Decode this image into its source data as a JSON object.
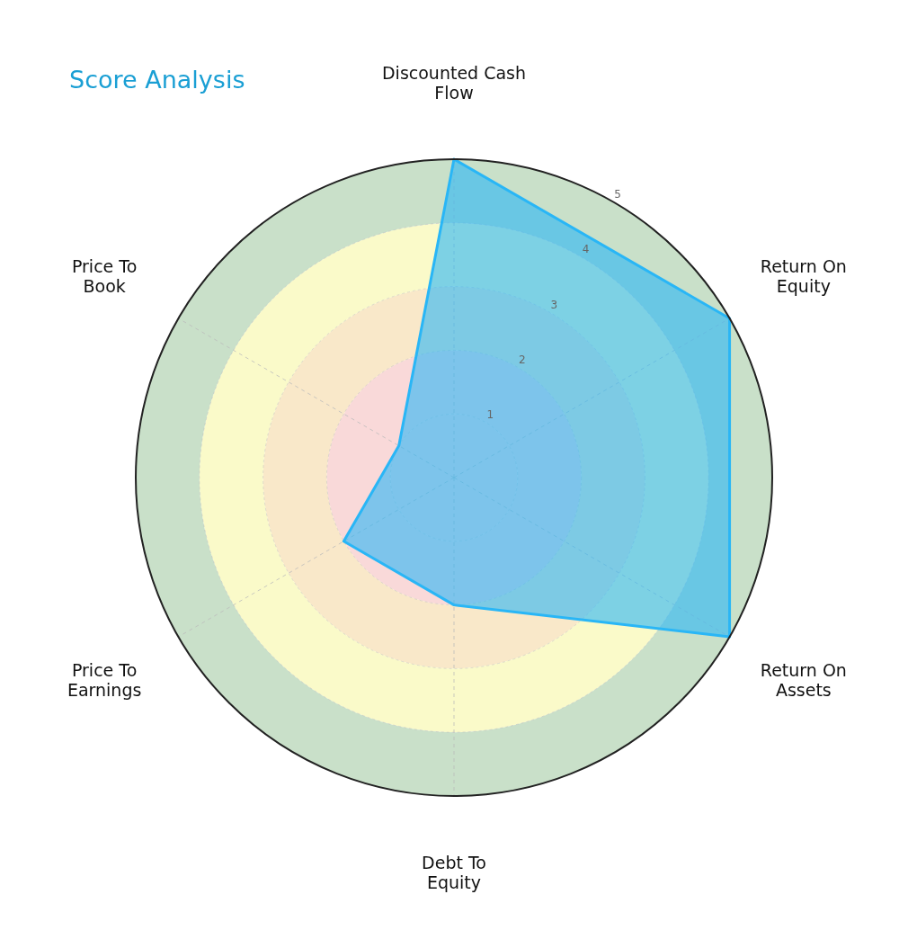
{
  "chart_data": {
    "type": "radar",
    "title": "Score Analysis",
    "categories": [
      "Discounted Cash Flow",
      "Return On Equity",
      "Return On Assets",
      "Debt To Equity",
      "Price To Earnings",
      "Price To Book"
    ],
    "series": [
      {
        "color": "#29b6f6",
        "values": [
          5,
          5,
          5,
          2,
          2,
          1
        ]
      }
    ],
    "ylim": [
      0,
      5
    ],
    "yticks": [
      1,
      2,
      3,
      4,
      5
    ],
    "grid": true
  }
}
